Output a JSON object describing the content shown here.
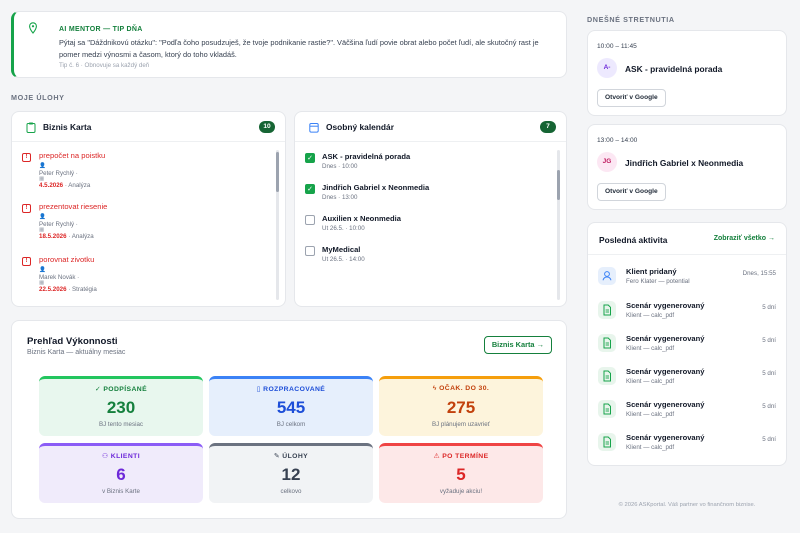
{
  "mentor": {
    "label": "AI MENTOR — TIP DŇA",
    "text": "Pýtaj sa \"Dáždnikovú otázku\": \"Podľa čoho posudzuješ, že tvoje podnikanie rastie?\". Väčšina ľudí povie obrat alebo počet ľudí, ale skutočný rast je pomer medzi výnosmi a časom, ktorý do toho vkladáš.",
    "meta": "Tip č. 6 · Obnovuje sa každý deň"
  },
  "tasks_section_label": "MOJE ÚLOHY",
  "bizniskarta": {
    "title": "Biznis Karta",
    "count": "10",
    "items": [
      {
        "title": "prepočet na poistku",
        "person": "Peter Rychlý ·",
        "date": "4.5.2026",
        "category": "· Analýza"
      },
      {
        "title": "prezentovat riesenie",
        "person": "Peter Rychlý ·",
        "date": "18.5.2026",
        "category": "· Analýza"
      },
      {
        "title": "porovnat zivotku",
        "person": "Marek Novák ·",
        "date": "22.5.2026",
        "category": "· Stratégia"
      }
    ]
  },
  "calendar": {
    "title": "Osobný kalendár",
    "count": "7",
    "items": [
      {
        "title": "ASK - pravidelná porada",
        "time": "Dnes · 10:00",
        "done": true
      },
      {
        "title": "Jindřich Gabriel x Neonmedia",
        "time": "Dnes · 13:00",
        "done": true
      },
      {
        "title": "Auxilien x Neonmedia",
        "time": "Ut 26.5. · 10:00",
        "done": false
      },
      {
        "title": "MyMedical",
        "time": "Ut 26.5. · 14:00",
        "done": false
      }
    ]
  },
  "performance": {
    "title": "Prehľad Výkonnosti",
    "subtitle": "Biznis Karta — aktuálny mesiac",
    "button": "Biznis Karta →",
    "kpis": [
      {
        "label": "PODPÍSANÉ",
        "value": "230",
        "sub": "BJ tento mesiac",
        "color": "#15803d",
        "bg": "#e8f7ee",
        "border": "#22c55e",
        "icon": "check-circle-icon",
        "glyph": "✓"
      },
      {
        "label": "ROZPRACOVANÉ",
        "value": "545",
        "sub": "BJ celkom",
        "color": "#1d4ed8",
        "bg": "#e6effc",
        "border": "#3b82f6",
        "icon": "clipboard-icon",
        "glyph": "▯"
      },
      {
        "label": "OČAK. DO 30.",
        "value": "275",
        "sub": "BJ plánujem uzavrieť",
        "color": "#c2410c",
        "bg": "#fdf4dc",
        "border": "#f59e0b",
        "icon": "lightning-icon",
        "glyph": "ϟ"
      },
      {
        "label": "KLIENTI",
        "value": "6",
        "sub": "v Biznis Karte",
        "color": "#6d28d9",
        "bg": "#f0ebfb",
        "border": "#8b5cf6",
        "icon": "network-icon",
        "glyph": "⚇"
      },
      {
        "label": "ÚLOHY",
        "value": "12",
        "sub": "celkovo",
        "color": "#374151",
        "bg": "#f1f3f5",
        "border": "#6b7280",
        "icon": "edit-icon",
        "glyph": "✎"
      },
      {
        "label": "PO TERMÍNE",
        "value": "5",
        "sub": "vyžaduje akciu!",
        "color": "#dc2626",
        "bg": "#fde8e8",
        "border": "#ef4444",
        "icon": "warning-icon",
        "glyph": "⚠"
      }
    ]
  },
  "meetings_label": "DNEŠNÉ STRETNUTIA",
  "meetings": [
    {
      "time": "10:00 – 11:45",
      "initials": "A-",
      "title": "ASK - pravidelná porada",
      "button": "Otvoriť v Google",
      "avatar_bg": "#ede9fe",
      "avatar_fg": "#6d28d9"
    },
    {
      "time": "13:00 – 14:00",
      "initials": "JG",
      "title": "Jindřich Gabriel x Neonmedia",
      "button": "Otvoriť v Google",
      "avatar_bg": "#fce7f3",
      "avatar_fg": "#be185d"
    }
  ],
  "activity": {
    "title": "Posledná aktivita",
    "link": "Zobraziť všetko →",
    "items": [
      {
        "title": "Klient pridaný",
        "sub": "Fero Klater — potential",
        "time": "Dnes, 15:55",
        "icon": "user-icon"
      },
      {
        "title": "Scenár vygenerovaný",
        "sub": "Klient — calc_pdf",
        "time": "5 dní",
        "icon": "document-icon"
      },
      {
        "title": "Scenár vygenerovaný",
        "sub": "Klient — calc_pdf",
        "time": "5 dní",
        "icon": "document-icon"
      },
      {
        "title": "Scenár vygenerovaný",
        "sub": "Klient — calc_pdf",
        "time": "5 dní",
        "icon": "document-icon"
      },
      {
        "title": "Scenár vygenerovaný",
        "sub": "Klient — calc_pdf",
        "time": "5 dní",
        "icon": "document-icon"
      },
      {
        "title": "Scenár vygenerovaný",
        "sub": "Klient — calc_pdf",
        "time": "5 dní",
        "icon": "document-icon"
      }
    ]
  },
  "footer": "© 2026 ASKportal. Váš partner vo finančnom biznise."
}
